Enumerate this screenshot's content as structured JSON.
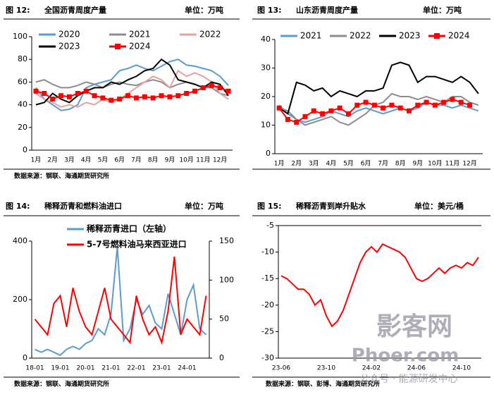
{
  "chart_data": [
    {
      "type": "line",
      "figure": "图 12:",
      "title": "全国沥青周度产量",
      "unit": "单位：万吨",
      "source": "数据来源：钢联、海通期货研究所",
      "categories": [
        "1月",
        null,
        "2月",
        null,
        "3月",
        null,
        "4月",
        null,
        "5月",
        null,
        "6月",
        null,
        "7月",
        null,
        "8月",
        null,
        "9月",
        null,
        "10月",
        null,
        "11月",
        null,
        "12月",
        null
      ],
      "ylim": [
        0,
        100
      ],
      "yticks": [
        0,
        20,
        40,
        60,
        80,
        100
      ],
      "series": [
        {
          "name": "2020",
          "color": "#5b9bd5",
          "values": [
            55,
            45,
            40,
            35,
            36,
            40,
            55,
            58,
            60,
            62,
            70,
            72,
            75,
            72,
            70,
            74,
            78,
            80,
            75,
            74,
            72,
            70,
            65,
            57
          ]
        },
        {
          "name": "2021",
          "color": "#8c8c8c",
          "values": [
            60,
            62,
            58,
            55,
            55,
            57,
            60,
            58,
            55,
            58,
            60,
            58,
            57,
            60,
            62,
            60,
            55,
            58,
            60,
            58,
            55,
            55,
            50,
            48
          ]
        },
        {
          "name": "2022",
          "color": "#e8a0a0",
          "values": [
            50,
            45,
            42,
            38,
            40,
            38,
            42,
            40,
            45,
            42,
            45,
            50,
            55,
            60,
            65,
            62,
            55,
            70,
            65,
            68,
            65,
            60,
            50,
            45
          ]
        },
        {
          "name": "2023",
          "color": "#000000",
          "values": [
            40,
            42,
            50,
            45,
            42,
            48,
            52,
            55,
            55,
            60,
            58,
            62,
            65,
            70,
            72,
            80,
            75,
            62,
            60,
            58,
            55,
            60,
            58,
            48
          ]
        },
        {
          "name": "2024",
          "color": "#ff0000",
          "marker": "square",
          "values": [
            52,
            50,
            45,
            48,
            47,
            50,
            52,
            48,
            46,
            44,
            45,
            48,
            46,
            47,
            46,
            48,
            47,
            48,
            50,
            52,
            55,
            57,
            55,
            52
          ]
        }
      ]
    },
    {
      "type": "line",
      "figure": "图 13:",
      "title": "山东沥青周度产量",
      "unit": "单位：万吨",
      "categories": [
        "1月",
        null,
        "2月",
        null,
        "3月",
        null,
        "4月",
        null,
        "5月",
        null,
        "6月",
        null,
        "7月",
        null,
        "8月",
        null,
        "9月",
        null,
        "10月",
        null,
        "11月",
        null,
        "12月",
        null
      ],
      "ylim": [
        0,
        40
      ],
      "yticks": [
        0,
        10,
        20,
        30,
        40
      ],
      "series": [
        {
          "name": "2021",
          "color": "#5b9bd5",
          "values": [
            17,
            14,
            12,
            11,
            12,
            13,
            15,
            14,
            13,
            15,
            16,
            15,
            14,
            15,
            16,
            15,
            16,
            18,
            17,
            17,
            16,
            17,
            16,
            15
          ]
        },
        {
          "name": "2022",
          "color": "#8c8c8c",
          "values": [
            16,
            15,
            12,
            10,
            11,
            12,
            13,
            11,
            10,
            12,
            14,
            17,
            18,
            21,
            20,
            20,
            19,
            20,
            19,
            18,
            20,
            20,
            18,
            17
          ]
        },
        {
          "name": "2023",
          "color": "#000000",
          "values": [
            16,
            14,
            25,
            24,
            22,
            23,
            20,
            22,
            21,
            20,
            22,
            22,
            23,
            31,
            32,
            31,
            25,
            27,
            27,
            26,
            25,
            27,
            25,
            21
          ]
        },
        {
          "name": "2024",
          "color": "#ff0000",
          "marker": "square",
          "values": [
            16,
            12,
            11,
            13,
            15,
            14,
            15,
            16,
            14,
            17,
            18,
            17,
            16,
            17,
            16,
            15,
            17,
            18,
            17,
            18,
            19,
            18,
            17,
            null
          ]
        }
      ]
    },
    {
      "type": "line",
      "figure": "图 14:",
      "title": "稀释沥青和燃料油进口",
      "unit": "单位：万吨",
      "source": "数据来源：钢联、海通期货研究所",
      "categories": [
        "18-01",
        null,
        null,
        null,
        "19-01",
        null,
        null,
        null,
        "20-01",
        null,
        null,
        null,
        "21-01",
        null,
        null,
        null,
        "22-01",
        null,
        null,
        null,
        "23-01",
        null,
        null,
        null,
        "24-01",
        null,
        null,
        null
      ],
      "ylim": [
        0,
        400
      ],
      "yticks": [
        0,
        200,
        400
      ],
      "y2lim": [
        0,
        150
      ],
      "y2ticks": [
        0,
        50,
        100,
        150
      ],
      "series": [
        {
          "name": "稀释沥青进口（左轴）",
          "color": "#5b9bd5",
          "values": [
            30,
            20,
            30,
            20,
            10,
            30,
            40,
            30,
            50,
            60,
            100,
            80,
            150,
            380,
            60,
            100,
            200,
            150,
            180,
            120,
            100,
            220,
            150,
            80,
            200,
            250,
            100,
            80
          ]
        },
        {
          "name": "5-7号燃料油马来西亚进口",
          "color": "#ff0000",
          "axis": "y2",
          "values": [
            50,
            40,
            30,
            70,
            80,
            40,
            90,
            60,
            40,
            30,
            60,
            90,
            50,
            40,
            30,
            20,
            80,
            50,
            30,
            40,
            20,
            60,
            130,
            30,
            50,
            40,
            30,
            80
          ]
        }
      ]
    },
    {
      "type": "line",
      "figure": "图 15:",
      "title": "稀释沥青到岸升贴水",
      "unit": "单位：美元/桶",
      "source": "数据来源：钢联、彭博、海通期货研究所",
      "categories": [
        "23-06",
        null,
        null,
        null,
        null,
        null,
        null,
        null,
        "23-10",
        null,
        null,
        null,
        null,
        null,
        null,
        null,
        "24-02",
        null,
        null,
        null,
        null,
        null,
        null,
        null,
        "24-06",
        null,
        null,
        null,
        null,
        null,
        null,
        null,
        "24-10",
        null,
        null,
        null
      ],
      "ylim": [
        -30,
        -5
      ],
      "yticks": [
        -30,
        -25,
        -20,
        -15,
        -10,
        -5
      ],
      "series": [
        {
          "name": null,
          "color": "#ff0000",
          "values": [
            -14.5,
            -15,
            -16,
            -17,
            -17,
            -18,
            -20,
            -19,
            -22,
            -24,
            -23,
            -21,
            -18,
            -15,
            -12,
            -10,
            -9,
            -10,
            -8.5,
            -9,
            -9.5,
            -10,
            -11,
            -13,
            -15,
            -15.5,
            -15,
            -14,
            -13,
            -14,
            -13,
            -12.5,
            -13,
            -12,
            -12.5,
            -11
          ]
        }
      ],
      "watermark": [
        "影客网",
        "Phoer.com",
        "公众号 · 能源研发中心"
      ]
    }
  ]
}
